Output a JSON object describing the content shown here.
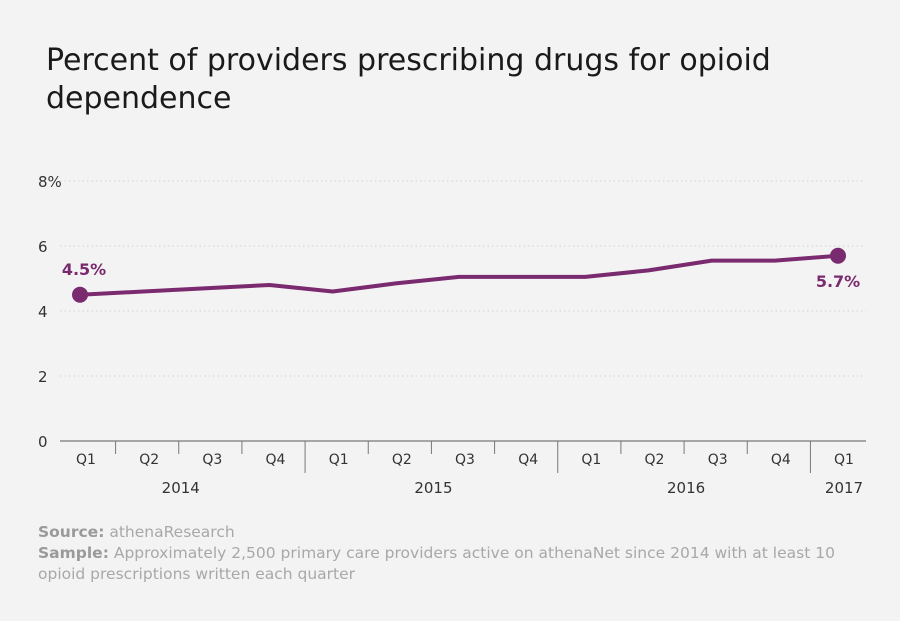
{
  "title": "Percent of providers prescribing drugs for opioid dependence",
  "chart_data": {
    "type": "line",
    "title": "Percent of providers prescribing drugs for opioid dependence",
    "ylabel": "",
    "xlabel": "",
    "ylim": [
      0,
      8
    ],
    "yticks": [
      "0",
      "2",
      "4",
      "6",
      "8%"
    ],
    "yticks_values": [
      0,
      2,
      4,
      6,
      8
    ],
    "grid": true,
    "quarters": [
      "Q1",
      "Q2",
      "Q3",
      "Q4",
      "Q1",
      "Q2",
      "Q3",
      "Q4",
      "Q1",
      "Q2",
      "Q3",
      "Q4",
      "Q1"
    ],
    "years": [
      "2014",
      "2015",
      "2016",
      "2017"
    ],
    "series": [
      {
        "values": [
          4.5,
          4.6,
          4.7,
          4.8,
          4.6,
          4.85,
          5.05,
          5.05,
          5.05,
          5.25,
          5.55,
          5.55,
          5.7
        ]
      }
    ],
    "annotations": [
      {
        "index": 0,
        "label": "4.5%"
      },
      {
        "index": 12,
        "label": "5.7%"
      }
    ],
    "colors": {
      "line": "#7a2a6e",
      "axis": "#777777",
      "grid": "#d2d2d2",
      "tick_text": "#333333"
    }
  },
  "footer": {
    "source_label": "Source:",
    "source_text": "athenaResearch",
    "sample_label": "Sample:",
    "sample_text": "Approximately 2,500 primary care providers active on athenaNet since 2014 with at least 10 opioid prescriptions written each quarter"
  }
}
